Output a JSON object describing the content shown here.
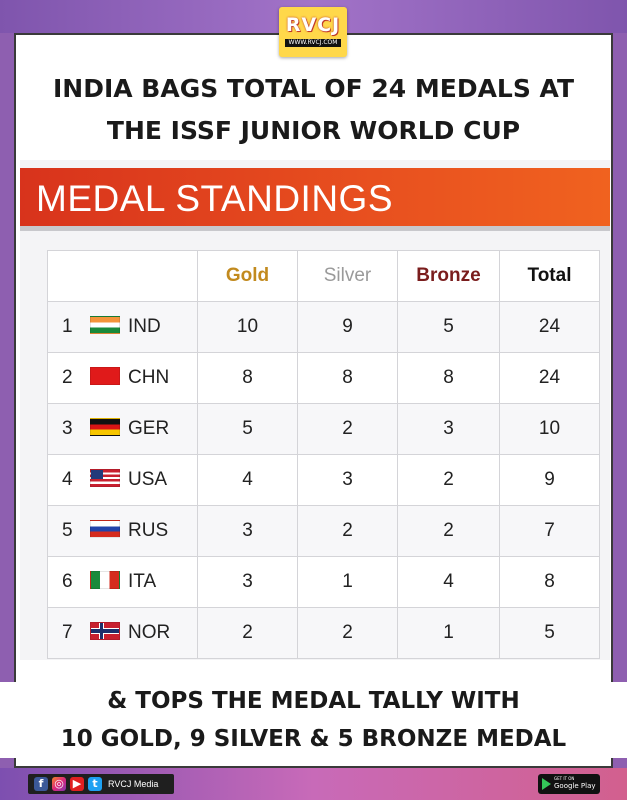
{
  "logo": {
    "text": "RVCJ",
    "subtext": "WWW.RVCJ.COM"
  },
  "headline": {
    "line1": "INDIA BAGS TOTAL OF 24 MEDALS AT",
    "line2": "THE ISSF JUNIOR WORLD CUP"
  },
  "banner": {
    "title": "MEDAL STANDINGS"
  },
  "table": {
    "headers": {
      "gold": "Gold",
      "silver": "Silver",
      "bronze": "Bronze",
      "total": "Total"
    },
    "rows": [
      {
        "rank": "1",
        "flag": "india-flag",
        "code": "IND",
        "gold": "10",
        "silver": "9",
        "bronze": "5",
        "total": "24"
      },
      {
        "rank": "2",
        "flag": "china-flag",
        "code": "CHN",
        "gold": "8",
        "silver": "8",
        "bronze": "8",
        "total": "24"
      },
      {
        "rank": "3",
        "flag": "germany-flag",
        "code": "GER",
        "gold": "5",
        "silver": "2",
        "bronze": "3",
        "total": "10"
      },
      {
        "rank": "4",
        "flag": "usa-flag",
        "code": "USA",
        "gold": "4",
        "silver": "3",
        "bronze": "2",
        "total": "9"
      },
      {
        "rank": "5",
        "flag": "russia-flag",
        "code": "RUS",
        "gold": "3",
        "silver": "2",
        "bronze": "2",
        "total": "7"
      },
      {
        "rank": "6",
        "flag": "italy-flag",
        "code": "ITA",
        "gold": "3",
        "silver": "1",
        "bronze": "4",
        "total": "8"
      },
      {
        "rank": "7",
        "flag": "norway-flag",
        "code": "NOR",
        "gold": "2",
        "silver": "2",
        "bronze": "1",
        "total": "5"
      }
    ]
  },
  "footer_text": {
    "line1": "& TOPS THE MEDAL TALLY WITH",
    "line2": "10 GOLD, 9 SILVER & 5 BRONZE MEDAL"
  },
  "bottom_bar": {
    "social_icons": [
      "facebook-icon",
      "instagram-icon",
      "youtube-icon",
      "twitter-icon"
    ],
    "social_name": "RVCJ Media",
    "store_top": "GET IT ON",
    "store_label": "Google Play"
  },
  "colors": {
    "banner": "#e8501f",
    "gold_header": "#c28a1e",
    "silver_header": "#9a9a9a",
    "bronze_header": "#7a1d1d",
    "frame_purple": "#8e5fb0"
  }
}
